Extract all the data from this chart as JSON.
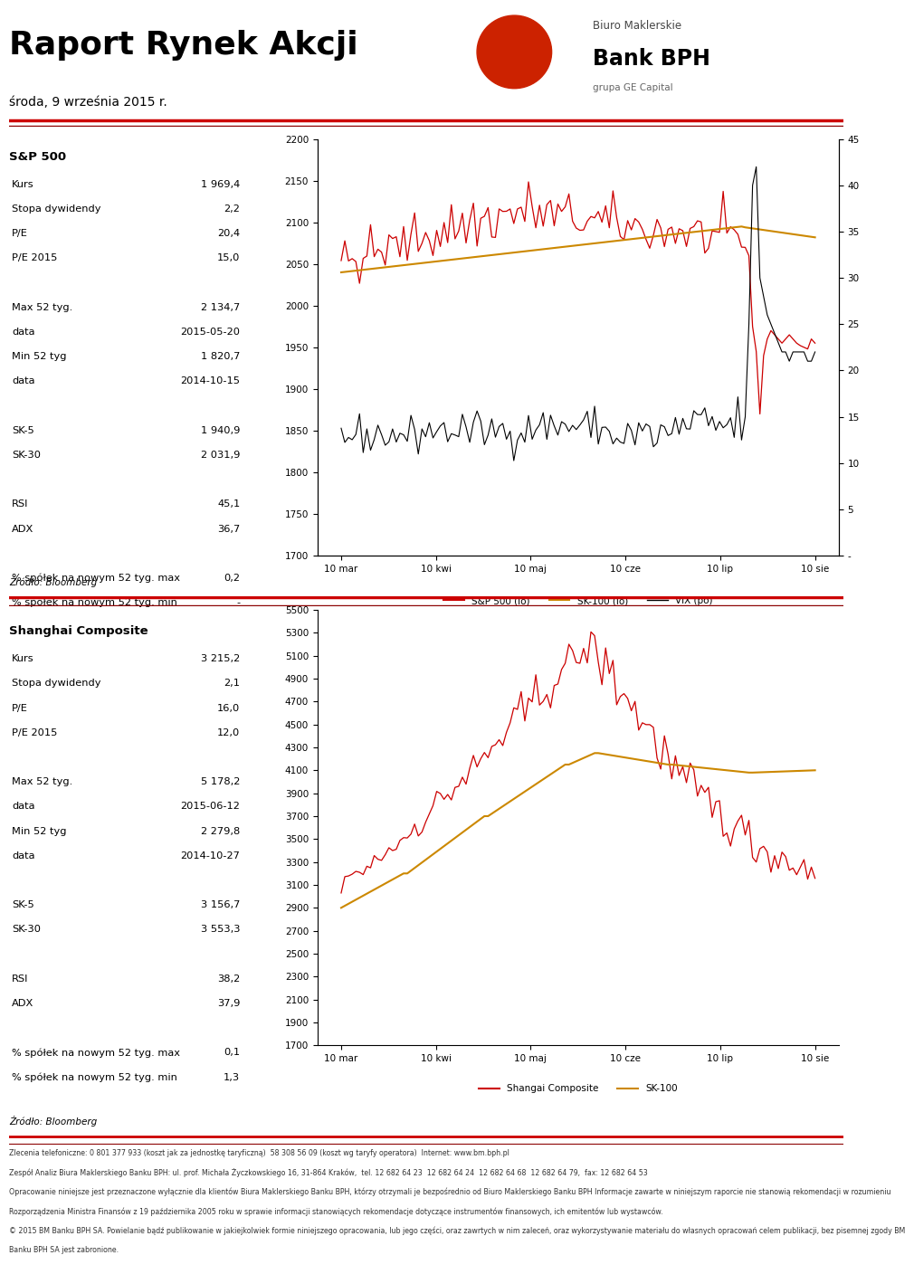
{
  "title": "Raport Rynek Akcji",
  "date": "środa, 9 września 2015 r.",
  "bank_line1": "Biuro Maklerskie",
  "bank_line2": "Bank BPH",
  "bank_line3": "grupa GE Capital",
  "sp500": {
    "section_title": "S&P 500",
    "rows": [
      [
        "Kurs",
        "1 969,4"
      ],
      [
        "Stopa dywidendy",
        "2,2"
      ],
      [
        "P/E",
        "20,4"
      ],
      [
        "P/E 2015",
        "15,0"
      ],
      [
        "",
        ""
      ],
      [
        "Max 52 tyg.",
        "2 134,7"
      ],
      [
        "data",
        "2015-05-20"
      ],
      [
        "Min 52 tyg",
        "1 820,7"
      ],
      [
        "data",
        "2014-10-15"
      ],
      [
        "",
        ""
      ],
      [
        "SK-5",
        "1 940,9"
      ],
      [
        "SK-30",
        "2 031,9"
      ],
      [
        "",
        ""
      ],
      [
        "RSI",
        "45,1"
      ],
      [
        "ADX",
        "36,7"
      ],
      [
        "",
        ""
      ],
      [
        "% spółek na nowym 52 tyg. max",
        "0,2"
      ],
      [
        "% spółek na nowym 52 tyg. min",
        "-"
      ]
    ],
    "chart": {
      "ylim_left": [
        1700,
        2200
      ],
      "ylim_right": [
        0,
        45
      ],
      "yticks_left": [
        1700,
        1750,
        1800,
        1850,
        1900,
        1950,
        2000,
        2050,
        2100,
        2150,
        2200
      ],
      "yticks_right": [
        0,
        5,
        10,
        15,
        20,
        25,
        30,
        35,
        40,
        45
      ],
      "ytick_labels_right": [
        "-",
        "5",
        "10",
        "15",
        "20",
        "25",
        "30",
        "35",
        "40",
        "45"
      ],
      "xtick_labels": [
        "10 mar",
        "10 kwi",
        "10 maj",
        "10 cze",
        "10 lip",
        "10 sie"
      ],
      "legend": [
        "S&P 500 (lo)",
        "SK-100 (lo)",
        "VIX (po)"
      ],
      "line1_color": "#cc0000",
      "line2_color": "#cc8800",
      "line3_color": "#000000"
    }
  },
  "shanghai": {
    "section_title": "Shanghai Composite",
    "rows": [
      [
        "Kurs",
        "3 215,2"
      ],
      [
        "Stopa dywidendy",
        "2,1"
      ],
      [
        "P/E",
        "16,0"
      ],
      [
        "P/E 2015",
        "12,0"
      ],
      [
        "",
        ""
      ],
      [
        "Max 52 tyg.",
        "5 178,2"
      ],
      [
        "data",
        "2015-06-12"
      ],
      [
        "Min 52 tyg",
        "2 279,8"
      ],
      [
        "data",
        "2014-10-27"
      ],
      [
        "",
        ""
      ],
      [
        "SK-5",
        "3 156,7"
      ],
      [
        "SK-30",
        "3 553,3"
      ],
      [
        "",
        ""
      ],
      [
        "RSI",
        "38,2"
      ],
      [
        "ADX",
        "37,9"
      ],
      [
        "",
        ""
      ],
      [
        "% spółek na nowym 52 tyg. max",
        "0,1"
      ],
      [
        "% spółek na nowym 52 tyg. min",
        "1,3"
      ]
    ],
    "chart": {
      "ylim_left": [
        1700,
        5500
      ],
      "xtick_labels": [
        "10 mar",
        "10 kwi",
        "10 maj",
        "10 cze",
        "10 lip",
        "10 sie"
      ],
      "legend": [
        "Shangai Composite",
        "SK-100"
      ],
      "line1_color": "#cc0000",
      "line2_color": "#cc8800"
    }
  },
  "footer_source": "Źródło: Bloomberg",
  "footer_lines": [
    "Zlecenia telefoniczne: 0 801 377 933 (koszt jak za jednostkę taryficzną)  58 308 56 09 (koszt wg taryfy operatora)  Internet: www.bm.bph.pl",
    "Zespół Analiz Biura Maklerskiego Banku BPH: ul. prof. Michała Życzkowskiego 16, 31-864 Kraków,  tel. 12 682 64 23  12 682 64 24  12 682 64 68  12 682 64 79,  fax: 12 682 64 53",
    "Opracowanie niniejsze jest przeznaczone wyłącznie dla klientów Biura Maklerskiego Banku BPH, którzy otrzymali je bezpośrednio od Biuro Maklerskiego Banku BPH Informacje zawarte w niniejszym raporcie nie stanowią rekomendacji w rozumieniu",
    "Rozporządzenia Ministra Finansów z 19 października 2005 roku w sprawie informacji stanowiących rekomendacje dotyczące instrumentów finansowych, ich emitentów lub wystawców.",
    "© 2015 BM Banku BPH SA. Powielanie bądź publikowanie w jakiejkolwiek formie niniejszego opracowania, lub jego części, oraz zawrtych w nim zaleceń, oraz wykorzystywanie materiału do własnych opracowań celem publikacji, bez pisemnej zgody BM",
    "Banku BPH SA jest zabronione."
  ],
  "red_color": "#cc0000",
  "dark_red": "#8b0000",
  "text_color": "#000000",
  "bg_color": "#ffffff"
}
